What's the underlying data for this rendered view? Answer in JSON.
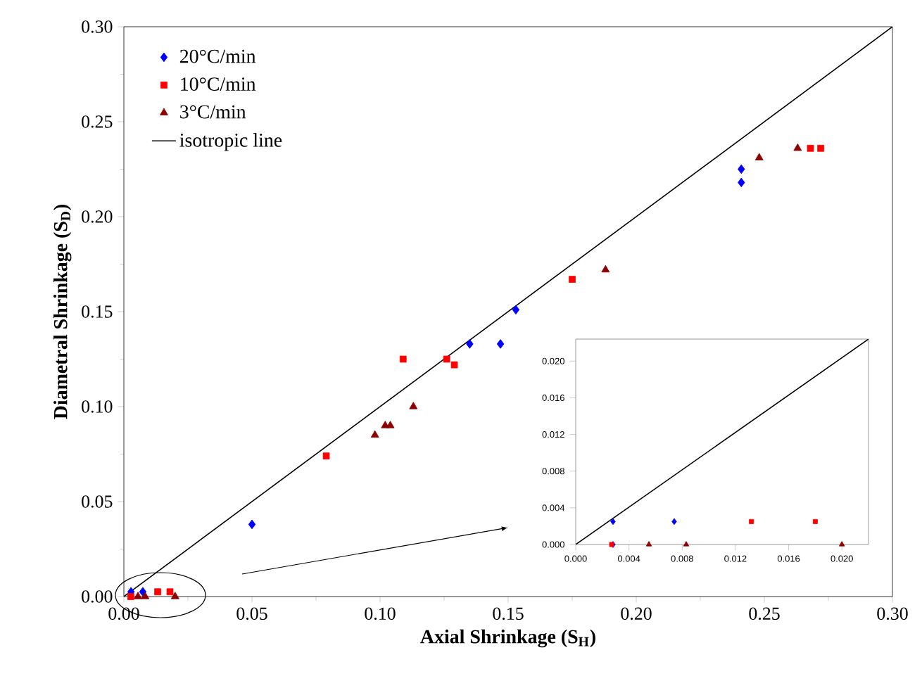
{
  "chart_data": [
    {
      "type": "scatter",
      "xlabel": "Axial Shrinkage (S$_{H}$)",
      "ylabel": "Diametral Shrinkage (S$_{D}$)",
      "xlim": [
        0,
        0.3
      ],
      "ylim": [
        0,
        0.3
      ],
      "xticks": [
        {
          "value": 0,
          "label": "0.00"
        },
        {
          "value": 0.05,
          "label": "0.05"
        },
        {
          "value": 0.1,
          "label": "0.10"
        },
        {
          "value": 0.15,
          "label": "0.15"
        },
        {
          "value": 0.2,
          "label": "0.20"
        },
        {
          "value": 0.25,
          "label": "0.25"
        },
        {
          "value": 0.3,
          "label": "0.30"
        }
      ],
      "yticks": [
        {
          "value": 0,
          "label": "0.00"
        },
        {
          "value": 0.05,
          "label": "0.05"
        },
        {
          "value": 0.1,
          "label": "0.10"
        },
        {
          "value": 0.15,
          "label": "0.15"
        },
        {
          "value": 0.2,
          "label": "0.20"
        },
        {
          "value": 0.25,
          "label": "0.25"
        },
        {
          "value": 0.3,
          "label": "0.30"
        }
      ],
      "legend": "top left",
      "series": [
        {
          "name": "20°C/min",
          "color": "#0000ff",
          "marker": "diamond",
          "x": [
            0.0028,
            0.0074,
            0.05,
            0.135,
            0.147,
            0.153,
            0.241,
            0.241
          ],
          "values": [
            0.0025,
            0.0025,
            0.038,
            0.133,
            0.133,
            0.151,
            0.225,
            0.218
          ]
        },
        {
          "name": "10°C/min",
          "color": "#ff0000",
          "marker": "square",
          "x": [
            0.0027,
            0.0132,
            0.018,
            0.079,
            0.109,
            0.126,
            0.129,
            0.175,
            0.268,
            0.272
          ],
          "values": [
            0,
            0.0025,
            0.0025,
            0.074,
            0.125,
            0.125,
            0.122,
            0.167,
            0.236,
            0.236
          ]
        },
        {
          "name": "3°C/min",
          "color": "#8b0000",
          "marker": "triangle",
          "x": [
            0.0055,
            0.0083,
            0.02,
            0.098,
            0.102,
            0.104,
            0.113,
            0.188,
            0.248,
            0.263
          ],
          "values": [
            0,
            0,
            0,
            0.085,
            0.09,
            0.09,
            0.1,
            0.172,
            0.231,
            0.236
          ]
        },
        {
          "name": "isotropic line",
          "type": "line",
          "color": "#000000",
          "marker": "none",
          "line_style": "solid",
          "x": [
            0,
            0.3
          ],
          "values": [
            0,
            0.3
          ]
        }
      ]
    },
    {
      "type": "scatter",
      "xlim": [
        0,
        0.022
      ],
      "ylim": [
        0,
        0.0224
      ],
      "xticks": [
        {
          "value": 0,
          "label": "0.000"
        },
        {
          "value": 0.004,
          "label": "0.004"
        },
        {
          "value": 0.008,
          "label": "0.008"
        },
        {
          "value": 0.012,
          "label": "0.012"
        },
        {
          "value": 0.016,
          "label": "0.016"
        },
        {
          "value": 0.02,
          "label": "0.020"
        }
      ],
      "yticks": [
        {
          "value": 0,
          "label": "0.000"
        },
        {
          "value": 0.004,
          "label": "0.004"
        },
        {
          "value": 0.008,
          "label": "0.008"
        },
        {
          "value": 0.012,
          "label": "0.012"
        },
        {
          "value": 0.016,
          "label": "0.016"
        },
        {
          "value": 0.02,
          "label": "0.020"
        }
      ],
      "series": [
        {
          "color": "#0000ff",
          "marker": "diamond",
          "x": [
            0.0028,
            0.0028,
            0.0074
          ],
          "values": [
            0.0025,
            0,
            0.0025
          ]
        },
        {
          "color": "#ff0000",
          "marker": "square",
          "x": [
            0.0027,
            0.0132,
            0.018
          ],
          "values": [
            0,
            0.0025,
            0.0025
          ]
        },
        {
          "color": "#8b0000",
          "marker": "triangle",
          "x": [
            0.0055,
            0.0083,
            0.02
          ],
          "values": [
            0,
            0,
            0
          ]
        },
        {
          "type": "line",
          "color": "#000000",
          "marker": "none",
          "line_style": "solid",
          "x": [
            0,
            0.022
          ],
          "values": [
            0,
            0.0224
          ]
        }
      ]
    }
  ]
}
